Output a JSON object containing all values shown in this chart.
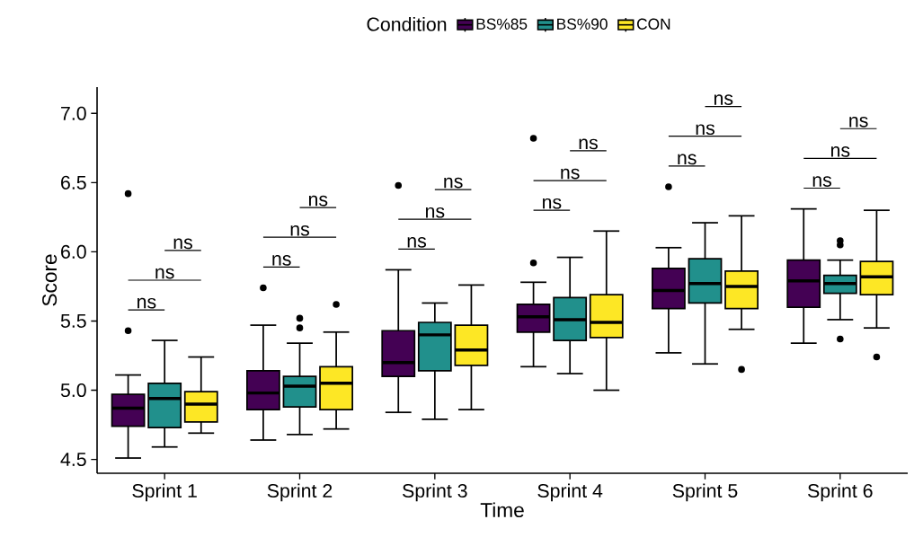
{
  "chart_data": {
    "type": "box",
    "xlabel": "Time",
    "ylabel": "Score",
    "legend_title": "Condition",
    "legend": "top",
    "categories": [
      "Sprint 1",
      "Sprint 2",
      "Sprint 3",
      "Sprint 4",
      "Sprint 5",
      "Sprint 6"
    ],
    "ylim": [
      4.4,
      7.19
    ],
    "yticks": [
      {
        "value": 4.5,
        "label": "4.5"
      },
      {
        "value": 5.0,
        "label": "5.0"
      },
      {
        "value": 5.5,
        "label": "5.5"
      },
      {
        "value": 6.0,
        "label": "6.0"
      },
      {
        "value": 6.5,
        "label": "6.5"
      },
      {
        "value": 7.0,
        "label": "7.0"
      }
    ],
    "series": [
      {
        "name": "BS%85",
        "color": "#440154",
        "boxes": [
          {
            "low": 4.51,
            "q1": 4.74,
            "median": 4.87,
            "q3": 4.97,
            "high": 5.11,
            "outliers": [
              5.43,
              6.42
            ]
          },
          {
            "low": 4.64,
            "q1": 4.86,
            "median": 4.98,
            "q3": 5.14,
            "high": 5.47,
            "outliers": [
              5.74
            ]
          },
          {
            "low": 4.84,
            "q1": 5.1,
            "median": 5.2,
            "q3": 5.43,
            "high": 5.87,
            "outliers": [
              6.48
            ]
          },
          {
            "low": 5.17,
            "q1": 5.42,
            "median": 5.53,
            "q3": 5.62,
            "high": 5.78,
            "outliers": [
              5.92,
              6.82
            ]
          },
          {
            "low": 5.27,
            "q1": 5.59,
            "median": 5.72,
            "q3": 5.88,
            "high": 6.03,
            "outliers": [
              6.47
            ]
          },
          {
            "low": 5.34,
            "q1": 5.6,
            "median": 5.79,
            "q3": 5.94,
            "high": 6.31
          }
        ]
      },
      {
        "name": "BS%90",
        "color": "#21908c",
        "boxes": [
          {
            "low": 4.59,
            "q1": 4.73,
            "median": 4.94,
            "q3": 5.05,
            "high": 5.36
          },
          {
            "low": 4.68,
            "q1": 4.88,
            "median": 5.03,
            "q3": 5.1,
            "high": 5.34,
            "outliers": [
              5.45,
              5.52
            ]
          },
          {
            "low": 4.79,
            "q1": 5.14,
            "median": 5.4,
            "q3": 5.49,
            "high": 5.63
          },
          {
            "low": 5.12,
            "q1": 5.36,
            "median": 5.51,
            "q3": 5.67,
            "high": 5.96
          },
          {
            "low": 5.19,
            "q1": 5.63,
            "median": 5.77,
            "q3": 5.95,
            "high": 6.21
          },
          {
            "low": 5.51,
            "q1": 5.7,
            "median": 5.77,
            "q3": 5.83,
            "high": 5.94,
            "outliers": [
              5.37,
              6.05,
              6.08
            ]
          }
        ]
      },
      {
        "name": "CON",
        "color": "#fde725",
        "boxes": [
          {
            "low": 4.69,
            "q1": 4.77,
            "median": 4.9,
            "q3": 4.99,
            "high": 5.24
          },
          {
            "low": 4.72,
            "q1": 4.86,
            "median": 5.05,
            "q3": 5.17,
            "high": 5.42,
            "outliers": [
              5.62
            ]
          },
          {
            "low": 4.86,
            "q1": 5.18,
            "median": 5.29,
            "q3": 5.47,
            "high": 5.76
          },
          {
            "low": 5.0,
            "q1": 5.38,
            "median": 5.49,
            "q3": 5.69,
            "high": 6.15
          },
          {
            "low": 5.44,
            "q1": 5.59,
            "median": 5.75,
            "q3": 5.86,
            "high": 6.26,
            "outliers": [
              5.15
            ]
          },
          {
            "low": 5.45,
            "q1": 5.69,
            "median": 5.82,
            "q3": 5.93,
            "high": 6.3,
            "outliers": [
              5.24
            ]
          }
        ]
      }
    ],
    "annotations": [
      "ns",
      "ns",
      "ns",
      "ns",
      "ns",
      "ns",
      "ns",
      "ns",
      "ns",
      "ns",
      "ns",
      "ns",
      "ns",
      "ns",
      "ns",
      "ns",
      "ns",
      "ns"
    ]
  }
}
